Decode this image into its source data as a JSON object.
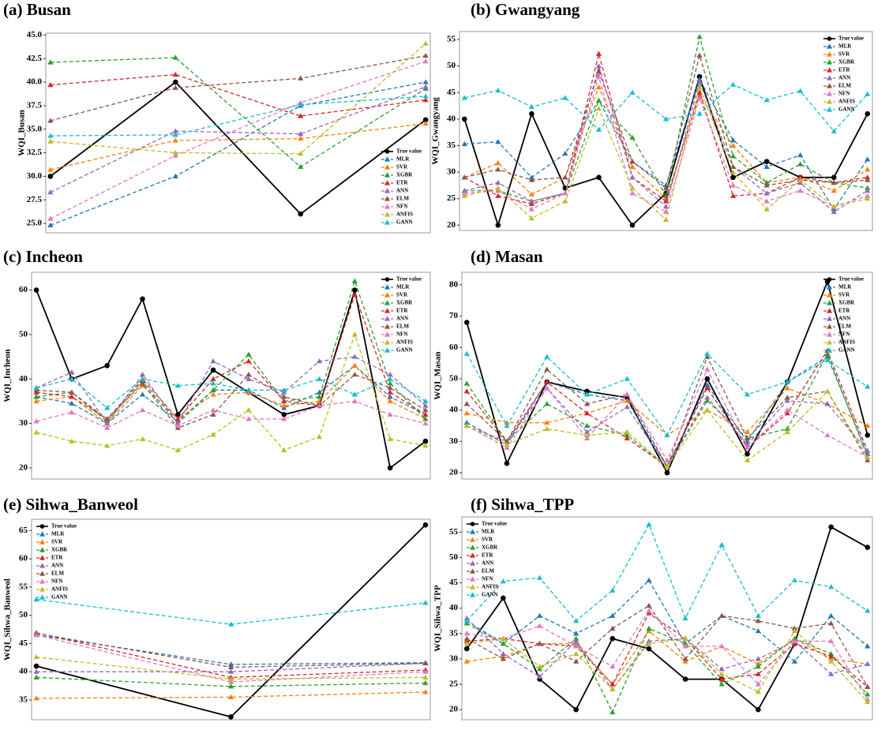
{
  "chart_data": [
    {
      "type": "line",
      "title": "(a) Busan",
      "ylabel": "WQI_Busan",
      "legend": "lower right",
      "categories": [
        null,
        null,
        null,
        null
      ],
      "ylim": [
        24,
        45.2
      ],
      "yticks": [
        {
          "value": 25,
          "label": "25.0"
        },
        {
          "value": 27.5,
          "label": "27.5"
        },
        {
          "value": 30,
          "label": "30.0"
        },
        {
          "value": 32.5,
          "label": "32.5"
        },
        {
          "value": 35,
          "label": "35.0"
        },
        {
          "value": 37.5,
          "label": "37.5"
        },
        {
          "value": 40,
          "label": "40.0"
        },
        {
          "value": 42.5,
          "label": "42.5"
        },
        {
          "value": 45,
          "label": "45.0"
        }
      ],
      "series": [
        {
          "name": "True value",
          "color": "#000000",
          "values": [
            30,
            40,
            26,
            36
          ]
        },
        {
          "name": "MLR",
          "color": "#1f77b4",
          "values": [
            24.8,
            30,
            37.5,
            40
          ]
        },
        {
          "name": "SVR",
          "color": "#ff7f0e",
          "values": [
            30.7,
            33.8,
            34,
            35.6
          ]
        },
        {
          "name": "XGBR",
          "color": "#2ca02c",
          "values": [
            42.1,
            42.6,
            31,
            39.3
          ]
        },
        {
          "name": "ETR",
          "color": "#d62728",
          "values": [
            39.7,
            40.8,
            36.4,
            38.1
          ]
        },
        {
          "name": "ANN",
          "color": "#9467bd",
          "values": [
            28.3,
            34.8,
            34.5,
            39.5
          ]
        },
        {
          "name": "ELM",
          "color": "#8c564b",
          "values": [
            35.9,
            39.4,
            40.4,
            42.8
          ]
        },
        {
          "name": "NFN",
          "color": "#e377c2",
          "values": [
            25.5,
            32.2,
            37.8,
            42.2
          ]
        },
        {
          "name": "ANFIS",
          "color": "#bcbd22",
          "values": [
            33.7,
            32.5,
            32.4,
            44.1
          ]
        },
        {
          "name": "GANN",
          "color": "#17becf",
          "values": [
            34.3,
            34.4,
            37.6,
            38.5
          ]
        }
      ]
    },
    {
      "type": "line",
      "title": "(b) Gwangyang",
      "ylabel": "WQI_Gwangyang",
      "legend": "upper right",
      "categories": [
        null,
        null,
        null,
        null,
        null,
        null,
        null,
        null,
        null,
        null,
        null,
        null,
        null
      ],
      "ylim": [
        19,
        56.5
      ],
      "yticks": [
        20,
        25,
        30,
        35,
        40,
        45,
        50,
        55
      ],
      "series": [
        {
          "name": "True value",
          "color": "#000000",
          "values": [
            40,
            20,
            41,
            27,
            29,
            20,
            26,
            48,
            29,
            32,
            29,
            29,
            41
          ]
        },
        {
          "name": "MLR",
          "color": "#1f77b4",
          "values": [
            35.3,
            35.7,
            29,
            33.5,
            43.5,
            32,
            27.5,
            47.5,
            36,
            31,
            33.2,
            23,
            32.4
          ]
        },
        {
          "name": "SVR",
          "color": "#ff7f0e",
          "values": [
            29,
            31.7,
            25.8,
            29,
            46,
            31,
            25,
            44.5,
            35,
            28,
            29,
            26.5,
            30.5
          ]
        },
        {
          "name": "XGBR",
          "color": "#2ca02c",
          "values": [
            26.5,
            26.5,
            24.5,
            26,
            43.5,
            36.5,
            25.5,
            55.5,
            33,
            28,
            31.5,
            28,
            27
          ]
        },
        {
          "name": "ETR",
          "color": "#d62728",
          "values": [
            29,
            25.5,
            24,
            26,
            52.3,
            29,
            24.5,
            45,
            25.5,
            26,
            29,
            28,
            29
          ]
        },
        {
          "name": "ANN",
          "color": "#9467bd",
          "values": [
            26.5,
            28,
            24.5,
            26,
            50,
            29,
            23.5,
            47,
            31,
            26,
            28,
            22.5,
            26.5
          ]
        },
        {
          "name": "ELM",
          "color": "#8c564b",
          "values": [
            29,
            30.5,
            28.5,
            29,
            49,
            32,
            27,
            52,
            31,
            27.5,
            28.5,
            28,
            28.5
          ]
        },
        {
          "name": "NFN",
          "color": "#e377c2",
          "values": [
            26,
            26.5,
            23,
            26,
            48,
            26,
            22.5,
            44,
            27.5,
            24.5,
            26.5,
            23.5,
            25.5
          ]
        },
        {
          "name": "ANFIS",
          "color": "#bcbd22",
          "values": [
            25.5,
            27,
            21.3,
            24.5,
            42,
            27,
            21,
            46,
            30,
            23,
            28.5,
            23.5,
            25
          ]
        },
        {
          "name": "GANN",
          "color": "#17becf",
          "values": [
            44,
            45.4,
            42.3,
            44,
            38,
            45,
            40,
            41,
            46.5,
            43.6,
            45.3,
            37.7,
            44.7
          ]
        }
      ]
    },
    {
      "type": "line",
      "title": "(c) Incheon",
      "ylabel": "WQI_Incheon",
      "legend": "upper right",
      "categories": [
        null,
        null,
        null,
        null,
        null,
        null,
        null,
        null,
        null,
        null,
        null,
        null
      ],
      "ylim": [
        17.5,
        64
      ],
      "yticks": [
        20,
        30,
        40,
        50,
        60
      ],
      "series": [
        {
          "name": "True value",
          "color": "#000000",
          "values": [
            60,
            40,
            43,
            58,
            32,
            42,
            37,
            32,
            34,
            60,
            20,
            26
          ]
        },
        {
          "name": "MLR",
          "color": "#1f77b4",
          "values": [
            36,
            34.5,
            30,
            36.5,
            30.5,
            37.5,
            37.5,
            33.5,
            37,
            43,
            36,
            32
          ]
        },
        {
          "name": "SVR",
          "color": "#ff7f0e",
          "values": [
            35,
            36,
            30,
            38.5,
            31,
            36.5,
            37,
            34,
            35,
            43,
            35,
            31
          ]
        },
        {
          "name": "XGBR",
          "color": "#2ca02c",
          "values": [
            36,
            37,
            30.5,
            39.5,
            30,
            37.5,
            45.5,
            35,
            36,
            62,
            39,
            31
          ]
        },
        {
          "name": "ETR",
          "color": "#d62728",
          "values": [
            37,
            36,
            31,
            40,
            31,
            40,
            44,
            35,
            34,
            59,
            37,
            32
          ]
        },
        {
          "name": "ANN",
          "color": "#9467bd",
          "values": [
            38,
            41.5,
            30,
            41,
            30,
            44,
            40,
            37,
            44,
            45,
            41,
            34
          ]
        },
        {
          "name": "ELM",
          "color": "#8c564b",
          "values": [
            37.5,
            37,
            31,
            39,
            29,
            32,
            41,
            36,
            34,
            41,
            38,
            33
          ]
        },
        {
          "name": "NFN",
          "color": "#e377c2",
          "values": [
            30.5,
            32.5,
            29,
            33,
            29.5,
            33,
            31,
            31,
            34,
            35,
            32,
            30
          ]
        },
        {
          "name": "ANFIS",
          "color": "#bcbd22",
          "values": [
            28,
            26,
            25,
            26.5,
            24,
            27.5,
            33,
            24,
            27,
            50,
            26.5,
            25
          ]
        },
        {
          "name": "GANN",
          "color": "#17becf",
          "values": [
            38,
            40,
            33.5,
            40,
            38.5,
            39,
            37.5,
            37.5,
            40,
            36.5,
            40,
            35
          ]
        }
      ]
    },
    {
      "type": "line",
      "title": "(d) Masan",
      "ylabel": "WQI_Masan",
      "legend": "upper right",
      "categories": [
        null,
        null,
        null,
        null,
        null,
        null,
        null,
        null,
        null,
        null,
        null
      ],
      "ylim": [
        18,
        84
      ],
      "yticks": [
        20,
        30,
        40,
        50,
        60,
        70,
        80
      ],
      "series": [
        {
          "name": "True value",
          "color": "#000000",
          "values": [
            68,
            23,
            49,
            46,
            44,
            20,
            50,
            26,
            49,
            81,
            32
          ]
        },
        {
          "name": "MLR",
          "color": "#1f77b4",
          "values": [
            36,
            29,
            49,
            45,
            43,
            22,
            48,
            30,
            49,
            57,
            26
          ]
        },
        {
          "name": "SVR",
          "color": "#ff7f0e",
          "values": [
            39,
            36,
            36,
            39,
            43,
            32,
            40,
            33,
            47,
            42,
            35
          ]
        },
        {
          "name": "XGBR",
          "color": "#2ca02c",
          "values": [
            48.5,
            30,
            42,
            35,
            32,
            22,
            43,
            31,
            34,
            58,
            25
          ]
        },
        {
          "name": "ETR",
          "color": "#d62728",
          "values": [
            46,
            30,
            49,
            39,
            31,
            22,
            47,
            28,
            39,
            59,
            27
          ]
        },
        {
          "name": "ANN",
          "color": "#9467bd",
          "values": [
            35,
            30,
            47,
            33,
            41,
            22,
            44,
            29,
            43,
            42,
            27
          ]
        },
        {
          "name": "ELM",
          "color": "#8c564b",
          "values": [
            42,
            30,
            53,
            42,
            45,
            22,
            57,
            31,
            44,
            46,
            24
          ]
        },
        {
          "name": "NFN",
          "color": "#e377c2",
          "values": [
            35,
            28,
            47,
            31,
            45,
            24,
            53,
            28,
            40,
            32,
            25
          ]
        },
        {
          "name": "ANFIS",
          "color": "#bcbd22",
          "values": [
            35,
            29,
            34,
            32,
            33,
            22,
            40,
            24,
            33,
            46,
            25
          ]
        },
        {
          "name": "GANN",
          "color": "#17becf",
          "values": [
            58,
            35,
            57,
            45,
            50,
            32,
            58,
            45,
            49,
            56,
            47.5
          ]
        }
      ]
    },
    {
      "type": "line",
      "title": "(e) Sihwa_Banweol",
      "ylabel": "WQI_Sihwa_Banweol",
      "legend": "upper left",
      "categories": [
        null,
        null,
        null
      ],
      "ylim": [
        31.5,
        67
      ],
      "yticks": [
        35,
        40,
        45,
        50,
        55,
        60,
        65
      ],
      "series": [
        {
          "name": "True value",
          "color": "#000000",
          "values": [
            41,
            32,
            66
          ]
        },
        {
          "name": "MLR",
          "color": "#1f77b4",
          "values": [
            46.5,
            41.3,
            41.6
          ]
        },
        {
          "name": "SVR",
          "color": "#ff7f0e",
          "values": [
            35.3,
            35.5,
            36.4
          ]
        },
        {
          "name": "XGBR",
          "color": "#2ca02c",
          "values": [
            39,
            37.4,
            38
          ]
        },
        {
          "name": "ETR",
          "color": "#d62728",
          "values": [
            46.9,
            39,
            40.3
          ]
        },
        {
          "name": "ANN",
          "color": "#9467bd",
          "values": [
            40,
            40,
            41.5
          ]
        },
        {
          "name": "ELM",
          "color": "#8c564b",
          "values": [
            46.8,
            40.8,
            41.5
          ]
        },
        {
          "name": "NFN",
          "color": "#e377c2",
          "values": [
            46.5,
            38.2,
            40
          ]
        },
        {
          "name": "ANFIS",
          "color": "#bcbd22",
          "values": [
            42.6,
            38.7,
            39
          ]
        },
        {
          "name": "GANN",
          "color": "#17becf",
          "values": [
            52.8,
            48.4,
            52.2
          ]
        }
      ]
    },
    {
      "type": "line",
      "title": "(f) Sihwa_TPP",
      "ylabel": "WQI_Sihwa_TPP",
      "legend": "upper left",
      "categories": [
        null,
        null,
        null,
        null,
        null,
        null,
        null,
        null,
        null,
        null,
        null,
        null
      ],
      "ylim": [
        18,
        58
      ],
      "yticks": [
        20,
        25,
        30,
        35,
        40,
        45,
        50,
        55
      ],
      "series": [
        {
          "name": "True value",
          "color": "#000000",
          "values": [
            32,
            42,
            26,
            20,
            34,
            32,
            26,
            26,
            20,
            33,
            56,
            52
          ]
        },
        {
          "name": "MLR",
          "color": "#1f77b4",
          "values": [
            37.5,
            33,
            38.5,
            35,
            38.5,
            45.5,
            33,
            38.5,
            35.5,
            29.5,
            38.5,
            32.5
          ]
        },
        {
          "name": "SVR",
          "color": "#ff7f0e",
          "values": [
            29.5,
            30.5,
            33,
            33,
            25,
            35.5,
            29.5,
            32.5,
            29,
            34,
            30,
            29
          ]
        },
        {
          "name": "XGBR",
          "color": "#2ca02c",
          "values": [
            37,
            33,
            28,
            34,
            19.5,
            36,
            33,
            25,
            28.5,
            34,
            31,
            23
          ]
        },
        {
          "name": "ETR",
          "color": "#d62728",
          "values": [
            33.5,
            34,
            33,
            32.5,
            25,
            39,
            34,
            26,
            27,
            33,
            30.5,
            24.5
          ]
        },
        {
          "name": "ANN",
          "color": "#9467bd",
          "values": [
            38,
            31,
            26.5,
            33.5,
            24,
            33.5,
            34,
            28,
            30,
            33.5,
            27,
            29
          ]
        },
        {
          "name": "ELM",
          "color": "#8c564b",
          "values": [
            34,
            30,
            33,
            29.5,
            36,
            40.5,
            30,
            38.5,
            37.5,
            36,
            37,
            24.5
          ]
        },
        {
          "name": "NFN",
          "color": "#e377c2",
          "values": [
            35,
            34,
            36.5,
            32.5,
            28.5,
            39.5,
            32.5,
            32.5,
            25,
            33.5,
            33.5,
            22
          ]
        },
        {
          "name": "ANFIS",
          "color": "#bcbd22",
          "values": [
            33,
            34,
            28.5,
            31,
            24,
            33,
            34,
            27,
            23.5,
            35.5,
            29.5,
            21.5
          ]
        },
        {
          "name": "GANN",
          "color": "#17becf",
          "values": [
            37.5,
            45.3,
            46,
            37.5,
            43.5,
            56.5,
            38,
            52.5,
            38.5,
            45.5,
            44.2,
            39.5
          ]
        }
      ]
    }
  ]
}
